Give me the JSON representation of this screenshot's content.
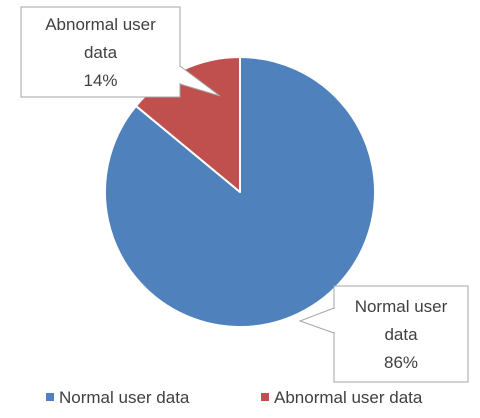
{
  "chart_data": {
    "type": "pie",
    "title": "",
    "categories": [
      "Normal user data",
      "Abnormal user data"
    ],
    "values": [
      86,
      14
    ],
    "labels": [
      {
        "name_lines": [
          "Normal user",
          "data"
        ],
        "value_label": "86%"
      },
      {
        "name_lines": [
          "Abnormal user",
          "data"
        ],
        "value_label": "14%"
      }
    ],
    "colors": [
      "#4f81bd",
      "#c0504d"
    ],
    "legend": {
      "position": "bottom",
      "items": [
        "Normal user data",
        "Abnormal user data"
      ]
    }
  }
}
